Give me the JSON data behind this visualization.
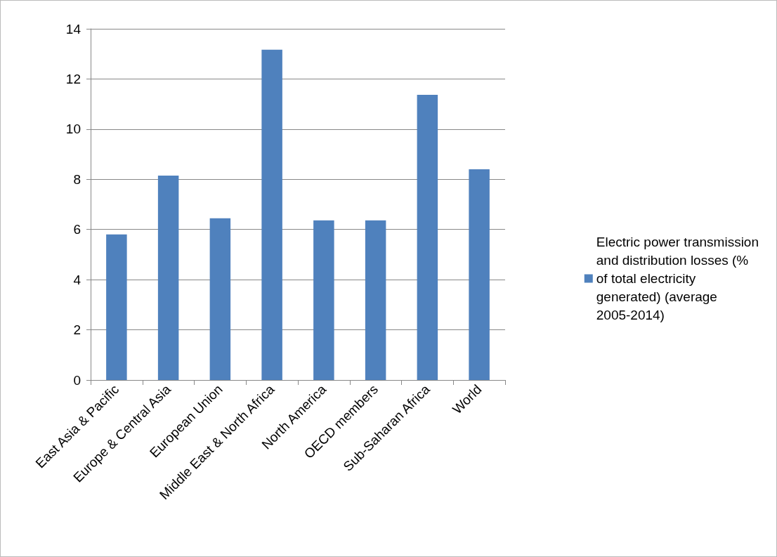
{
  "chart_data": {
    "type": "bar",
    "categories": [
      "East Asia & Pacific",
      "Europe & Central Asia",
      "European Union",
      "Middle East & North Africa",
      "North America",
      "OECD members",
      "Sub-Saharan Africa",
      "World"
    ],
    "series": [
      {
        "name": "Electric power transmission and distribution losses (% of total electricity generated) (average 2005-2014)",
        "color": "#4f81bd",
        "values": [
          5.8,
          8.15,
          6.45,
          13.17,
          6.36,
          6.36,
          11.37,
          8.4
        ]
      }
    ],
    "ylim": [
      0,
      14
    ],
    "yticks": [
      0,
      2,
      4,
      6,
      8,
      10,
      12,
      14
    ],
    "grid": "y",
    "legend": "right"
  }
}
